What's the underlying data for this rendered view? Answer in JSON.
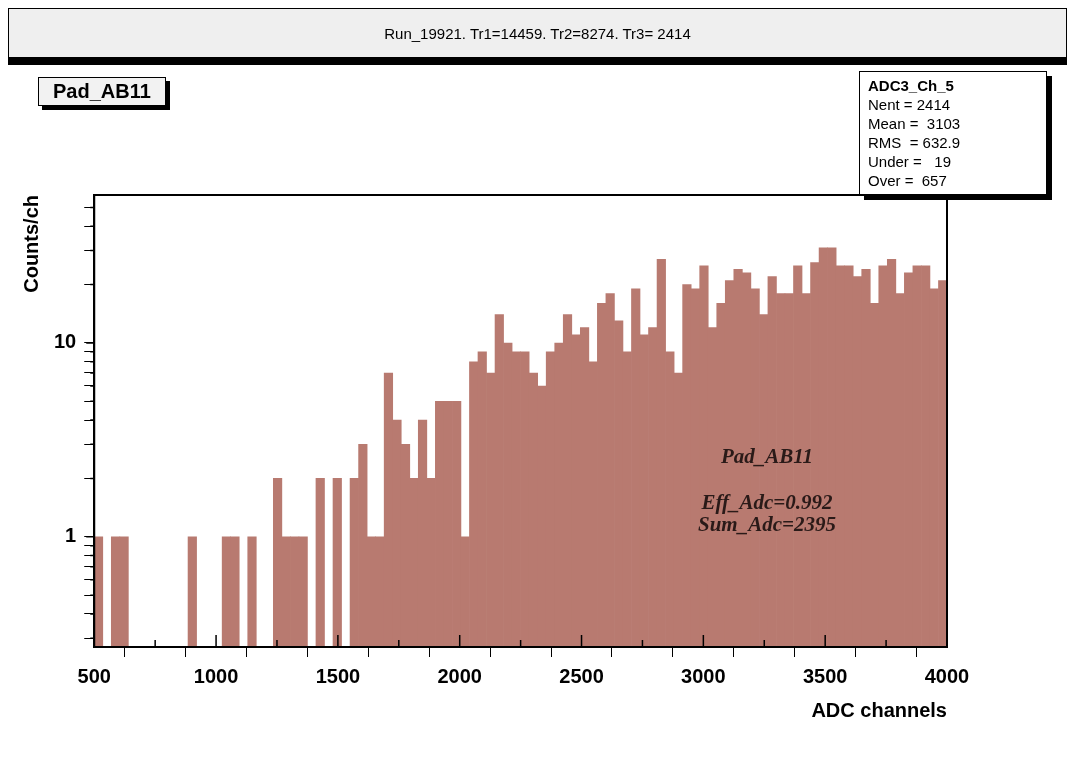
{
  "chart_data": {
    "type": "histogram",
    "title": "Run_19921. Tr1=14459. Tr2=8274. Tr3= 2414",
    "subtitle": "Pad_AB11",
    "xlabel": "ADC channels",
    "ylabel": "Counts/ch",
    "annotations": [
      "ADC3_Ch_5",
      "Nent = 2414",
      "Mean =  3103",
      "RMS  = 632.9",
      "Under =   19",
      "Over =  657",
      "Pad_AB11",
      "Eff_Adc=0.992",
      "Sum_Adc=2395"
    ],
    "bins": [
      500,
      535,
      570,
      605,
      640,
      675,
      710,
      745,
      780,
      815,
      850,
      885,
      920,
      955,
      990,
      1025,
      1060,
      1095,
      1130,
      1165,
      1200,
      1235,
      1270,
      1305,
      1340,
      1375,
      1410,
      1445,
      1480,
      1515,
      1550,
      1585,
      1620,
      1655,
      1690,
      1725,
      1760,
      1795,
      1830,
      1865,
      1900,
      1935,
      1970,
      2005,
      2040,
      2075,
      2110,
      2145,
      2180,
      2215,
      2250,
      2285,
      2320,
      2355,
      2390,
      2425,
      2460,
      2495,
      2530,
      2565,
      2600,
      2635,
      2670,
      2705,
      2740,
      2775,
      2810,
      2845,
      2880,
      2915,
      2950,
      2985,
      3020,
      3055,
      3090,
      3125,
      3160,
      3195,
      3230,
      3265,
      3300,
      3335,
      3370,
      3405,
      3440,
      3475,
      3510,
      3545,
      3580,
      3615,
      3650,
      3685,
      3720,
      3755,
      3790,
      3825,
      3860,
      3895,
      3930,
      3965,
      4000
    ],
    "values": [
      1,
      null,
      1,
      1,
      null,
      null,
      null,
      null,
      null,
      null,
      null,
      1,
      null,
      null,
      null,
      1,
      1,
      null,
      1,
      null,
      null,
      2,
      1,
      1,
      1,
      null,
      2,
      null,
      2,
      null,
      2,
      3,
      1,
      1,
      7,
      4,
      3,
      2,
      4,
      2,
      5,
      5,
      5,
      1,
      8,
      9,
      7,
      14,
      10,
      9,
      9,
      7,
      6,
      9,
      10,
      14,
      11,
      12,
      8,
      16,
      18,
      13,
      9,
      19,
      11,
      12,
      27,
      9,
      7,
      20,
      19,
      25,
      12,
      16,
      21,
      24,
      23,
      19,
      14,
      22,
      18,
      18,
      25,
      18,
      26,
      31,
      31,
      25,
      25,
      22,
      24,
      16,
      25,
      27,
      18,
      23,
      25,
      25,
      19,
      21
    ],
    "color": "#b87a70",
    "xlim": [
      500,
      4000
    ],
    "xticks": [
      500,
      {
        "value": 750,
        "label": null
      },
      1000,
      {
        "value": 1250,
        "label": null
      },
      1500,
      {
        "value": 1750,
        "label": null
      },
      2000,
      {
        "value": 2250,
        "label": null
      },
      2500,
      {
        "value": 2750,
        "label": null
      },
      3000,
      {
        "value": 3250,
        "label": null
      },
      3500,
      {
        "value": 3750,
        "label": null
      },
      4000
    ],
    "ylim": [
      0.27,
      58
    ],
    "yticks": [
      {
        "value": 0.3,
        "label": null
      },
      {
        "value": 0.4,
        "label": null
      },
      {
        "value": 0.5,
        "label": null
      },
      {
        "value": 0.6,
        "label": null
      },
      {
        "value": 0.7,
        "label": null
      },
      {
        "value": 0.8,
        "label": null
      },
      {
        "value": 0.9,
        "label": null
      },
      1,
      {
        "value": 2,
        "label": null
      },
      {
        "value": 3,
        "label": null
      },
      {
        "value": 4,
        "label": null
      },
      {
        "value": 5,
        "label": null
      },
      {
        "value": 6,
        "label": null
      },
      {
        "value": 7,
        "label": null
      },
      {
        "value": 8,
        "label": null
      },
      {
        "value": 9,
        "label": null
      },
      10,
      {
        "value": 20,
        "label": null
      },
      {
        "value": 30,
        "label": null
      },
      {
        "value": 40,
        "label": null
      },
      {
        "value": 50,
        "label": null
      }
    ],
    "log": "y",
    "legend": false
  }
}
